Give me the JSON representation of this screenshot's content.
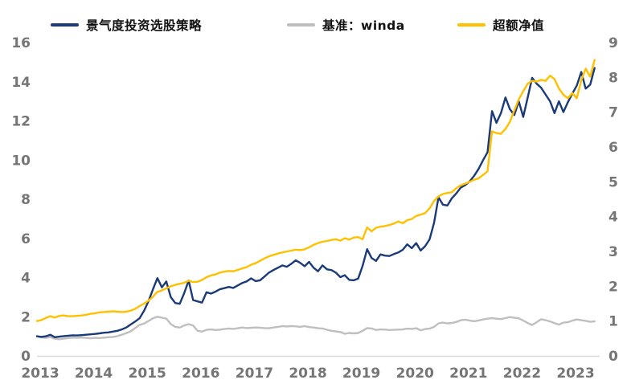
{
  "legend": {
    "items": [
      {
        "label": "景气度投资选股策略",
        "color": "#1a3a78"
      },
      {
        "label": "基准：winda",
        "color": "#bfbfbf"
      },
      {
        "label": "超额净值",
        "color": "#ffc000"
      }
    ]
  },
  "chart_data": {
    "type": "line",
    "title": "",
    "xlabel": "",
    "ylabel_left": "",
    "ylabel_right": "",
    "grid": false,
    "legend_position": "top",
    "background": "#ffffff",
    "axis_line_color": "#d9d9d9",
    "tick_label_color": "#757575",
    "x_start_year": 2013,
    "x_points_per_year": 12,
    "x_end": "2023-06",
    "x_tick_labels": [
      "2013",
      "2014",
      "2015",
      "2016",
      "2017",
      "2018",
      "2019",
      "2020",
      "2021",
      "2022",
      "2023"
    ],
    "left_axis": {
      "min": 0,
      "max": 16,
      "step": 2,
      "tick_labels": [
        "0",
        "2",
        "4",
        "6",
        "8",
        "10",
        "12",
        "14",
        "16"
      ]
    },
    "right_axis": {
      "min": 0,
      "max": 9,
      "step": 1,
      "tick_labels": [
        "0",
        "1",
        "2",
        "3",
        "4",
        "5",
        "6",
        "7",
        "8",
        "9"
      ]
    },
    "series": [
      {
        "name": "景气度投资选股策略",
        "id": "strategy",
        "axis": "left",
        "color": "#1a3a78",
        "start_value": 1.0,
        "end_value": 14.7,
        "values": [
          1.0,
          0.97,
          1.0,
          1.08,
          0.95,
          0.98,
          1.01,
          1.03,
          1.05,
          1.04,
          1.06,
          1.08,
          1.1,
          1.12,
          1.15,
          1.18,
          1.2,
          1.24,
          1.28,
          1.35,
          1.45,
          1.6,
          1.75,
          1.92,
          2.3,
          2.8,
          3.4,
          3.97,
          3.5,
          3.8,
          3.0,
          2.7,
          2.66,
          3.2,
          3.85,
          2.85,
          2.78,
          2.72,
          3.25,
          3.18,
          3.28,
          3.4,
          3.46,
          3.52,
          3.47,
          3.6,
          3.72,
          3.8,
          3.96,
          3.82,
          3.86,
          4.05,
          4.25,
          4.38,
          4.5,
          4.62,
          4.55,
          4.7,
          4.88,
          4.75,
          4.58,
          4.8,
          4.5,
          4.32,
          4.62,
          4.42,
          4.38,
          4.25,
          4.02,
          4.12,
          3.88,
          3.86,
          3.95,
          4.6,
          5.45,
          5.0,
          4.85,
          5.18,
          5.12,
          5.1,
          5.2,
          5.28,
          5.42,
          5.7,
          5.5,
          5.76,
          5.38,
          5.6,
          5.95,
          6.8,
          8.1,
          7.72,
          7.68,
          8.05,
          8.3,
          8.6,
          8.72,
          8.92,
          9.2,
          9.55,
          10.0,
          10.4,
          12.5,
          11.9,
          12.4,
          13.2,
          12.6,
          12.3,
          13.0,
          12.2,
          13.2,
          14.2,
          13.9,
          13.7,
          13.35,
          13.0,
          12.4,
          13.0,
          12.45,
          12.95,
          13.4,
          13.8,
          14.5,
          13.65,
          13.85,
          14.7
        ]
      },
      {
        "name": "基准：winda",
        "id": "benchmark",
        "axis": "left",
        "color": "#bfbfbf",
        "start_value": 1.0,
        "end_value": 1.76,
        "values": [
          1.0,
          0.95,
          0.92,
          0.96,
          0.88,
          0.85,
          0.88,
          0.91,
          0.93,
          0.92,
          0.94,
          0.92,
          0.9,
          0.92,
          0.91,
          0.93,
          0.95,
          0.97,
          1.01,
          1.08,
          1.16,
          1.25,
          1.42,
          1.58,
          1.65,
          1.78,
          1.92,
          2.0,
          1.95,
          1.9,
          1.62,
          1.48,
          1.45,
          1.55,
          1.62,
          1.55,
          1.28,
          1.24,
          1.33,
          1.35,
          1.32,
          1.34,
          1.37,
          1.4,
          1.38,
          1.41,
          1.45,
          1.42,
          1.43,
          1.45,
          1.44,
          1.42,
          1.41,
          1.45,
          1.48,
          1.52,
          1.5,
          1.52,
          1.51,
          1.48,
          1.52,
          1.47,
          1.45,
          1.41,
          1.4,
          1.33,
          1.28,
          1.25,
          1.22,
          1.13,
          1.17,
          1.15,
          1.17,
          1.28,
          1.42,
          1.4,
          1.32,
          1.35,
          1.34,
          1.32,
          1.33,
          1.34,
          1.35,
          1.39,
          1.38,
          1.41,
          1.31,
          1.37,
          1.39,
          1.48,
          1.66,
          1.7,
          1.66,
          1.68,
          1.73,
          1.82,
          1.85,
          1.8,
          1.77,
          1.81,
          1.86,
          1.9,
          1.93,
          1.9,
          1.88,
          1.93,
          1.98,
          1.95,
          1.92,
          1.8,
          1.68,
          1.58,
          1.72,
          1.87,
          1.82,
          1.76,
          1.67,
          1.6,
          1.7,
          1.72,
          1.8,
          1.86,
          1.82,
          1.79,
          1.74,
          1.76
        ]
      },
      {
        "name": "超额净值",
        "id": "excess",
        "axis": "right",
        "color": "#ffc000",
        "start_value": 1.0,
        "end_value": 8.5,
        "values": [
          1.0,
          1.03,
          1.09,
          1.14,
          1.1,
          1.15,
          1.16,
          1.14,
          1.14,
          1.15,
          1.16,
          1.18,
          1.21,
          1.22,
          1.25,
          1.26,
          1.27,
          1.28,
          1.27,
          1.26,
          1.27,
          1.3,
          1.35,
          1.43,
          1.5,
          1.59,
          1.7,
          1.84,
          1.88,
          1.94,
          2.0,
          2.04,
          2.07,
          2.1,
          2.16,
          2.12,
          2.13,
          2.18,
          2.26,
          2.31,
          2.34,
          2.39,
          2.42,
          2.44,
          2.43,
          2.47,
          2.51,
          2.55,
          2.62,
          2.66,
          2.73,
          2.8,
          2.86,
          2.9,
          2.94,
          2.97,
          3.0,
          3.02,
          3.05,
          3.04,
          3.06,
          3.12,
          3.19,
          3.24,
          3.28,
          3.3,
          3.33,
          3.35,
          3.31,
          3.38,
          3.34,
          3.4,
          3.41,
          3.35,
          3.69,
          3.58,
          3.68,
          3.71,
          3.73,
          3.76,
          3.8,
          3.86,
          3.81,
          3.9,
          3.93,
          4.02,
          4.06,
          4.1,
          4.24,
          4.45,
          4.58,
          4.65,
          4.68,
          4.7,
          4.82,
          4.9,
          4.95,
          5.0,
          5.06,
          5.1,
          5.2,
          5.3,
          6.45,
          6.4,
          6.38,
          6.52,
          6.72,
          7.05,
          7.37,
          7.6,
          7.82,
          7.9,
          7.88,
          7.93,
          7.9,
          8.05,
          7.95,
          7.68,
          7.5,
          7.4,
          7.55,
          7.4,
          7.92,
          8.25,
          8.02,
          8.5
        ]
      }
    ]
  }
}
